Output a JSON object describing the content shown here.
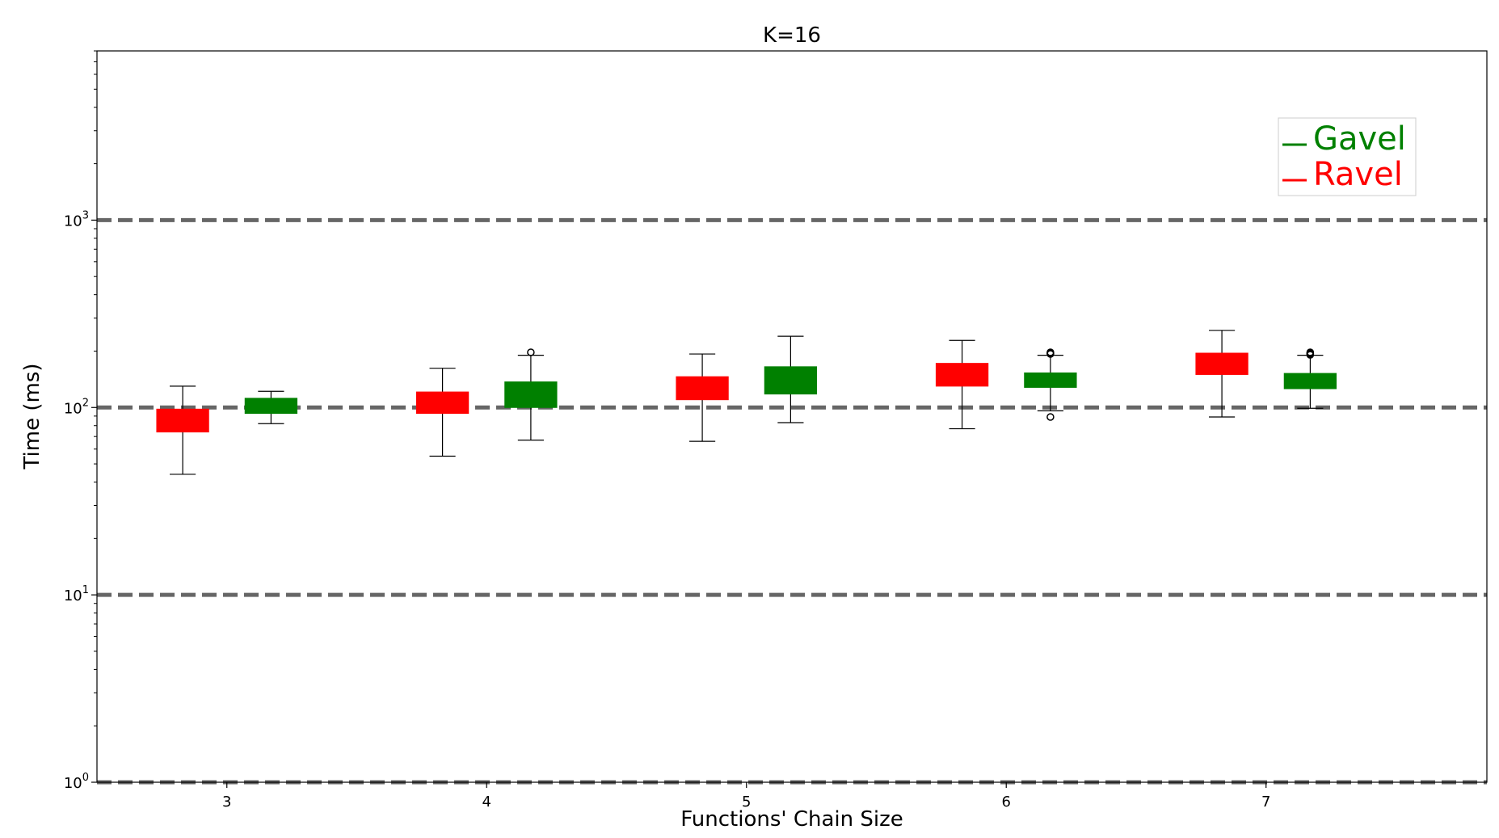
{
  "chart_data": {
    "type": "box",
    "title": "K=16",
    "xlabel": "Functions' Chain Size",
    "ylabel": "Time (ms)",
    "yscale": "log",
    "ylim": [
      1,
      8000
    ],
    "xlim": [
      2.5,
      7.85
    ],
    "y_ticks": [
      {
        "value": 1,
        "base": "10",
        "exp": "0"
      },
      {
        "value": 10,
        "base": "10",
        "exp": "1"
      },
      {
        "value": 100,
        "base": "10",
        "exp": "2"
      },
      {
        "value": 1000,
        "base": "10",
        "exp": "3"
      }
    ],
    "categories": [
      "3",
      "4",
      "5",
      "6",
      "7"
    ],
    "positions": [
      3,
      4,
      5,
      6,
      7
    ],
    "grid": "dashed horizontal at decades",
    "legend": {
      "placement": "top-right"
    },
    "series": [
      {
        "name": "Ravel",
        "color": "#ff0000",
        "offset": -0.17,
        "boxes": [
          {
            "whislo": 44,
            "q1": 74,
            "q3": 98,
            "whishi": 130,
            "fliers": []
          },
          {
            "whislo": 55,
            "q1": 93,
            "q3": 121,
            "whishi": 162,
            "fliers": []
          },
          {
            "whislo": 66,
            "q1": 110,
            "q3": 146,
            "whishi": 193,
            "fliers": []
          },
          {
            "whislo": 77,
            "q1": 130,
            "q3": 172,
            "whishi": 228,
            "fliers": []
          },
          {
            "whislo": 89,
            "q1": 150,
            "q3": 195,
            "whishi": 258,
            "fliers": []
          }
        ]
      },
      {
        "name": "Gavel",
        "color": "#008000",
        "offset": 0.17,
        "boxes": [
          {
            "whislo": 82,
            "q1": 93,
            "q3": 112,
            "whishi": 122,
            "fliers": []
          },
          {
            "whislo": 67,
            "q1": 100,
            "q3": 137,
            "whishi": 190,
            "fliers": [
              197
            ]
          },
          {
            "whislo": 83,
            "q1": 118,
            "q3": 165,
            "whishi": 240,
            "fliers": []
          },
          {
            "whislo": 96,
            "q1": 128,
            "q3": 153,
            "whishi": 190,
            "fliers": [
              89,
              193,
              195,
              197
            ]
          },
          {
            "whislo": 99,
            "q1": 126,
            "q3": 152,
            "whishi": 190,
            "fliers": [
              191,
              193,
              195,
              197
            ]
          }
        ]
      }
    ]
  }
}
